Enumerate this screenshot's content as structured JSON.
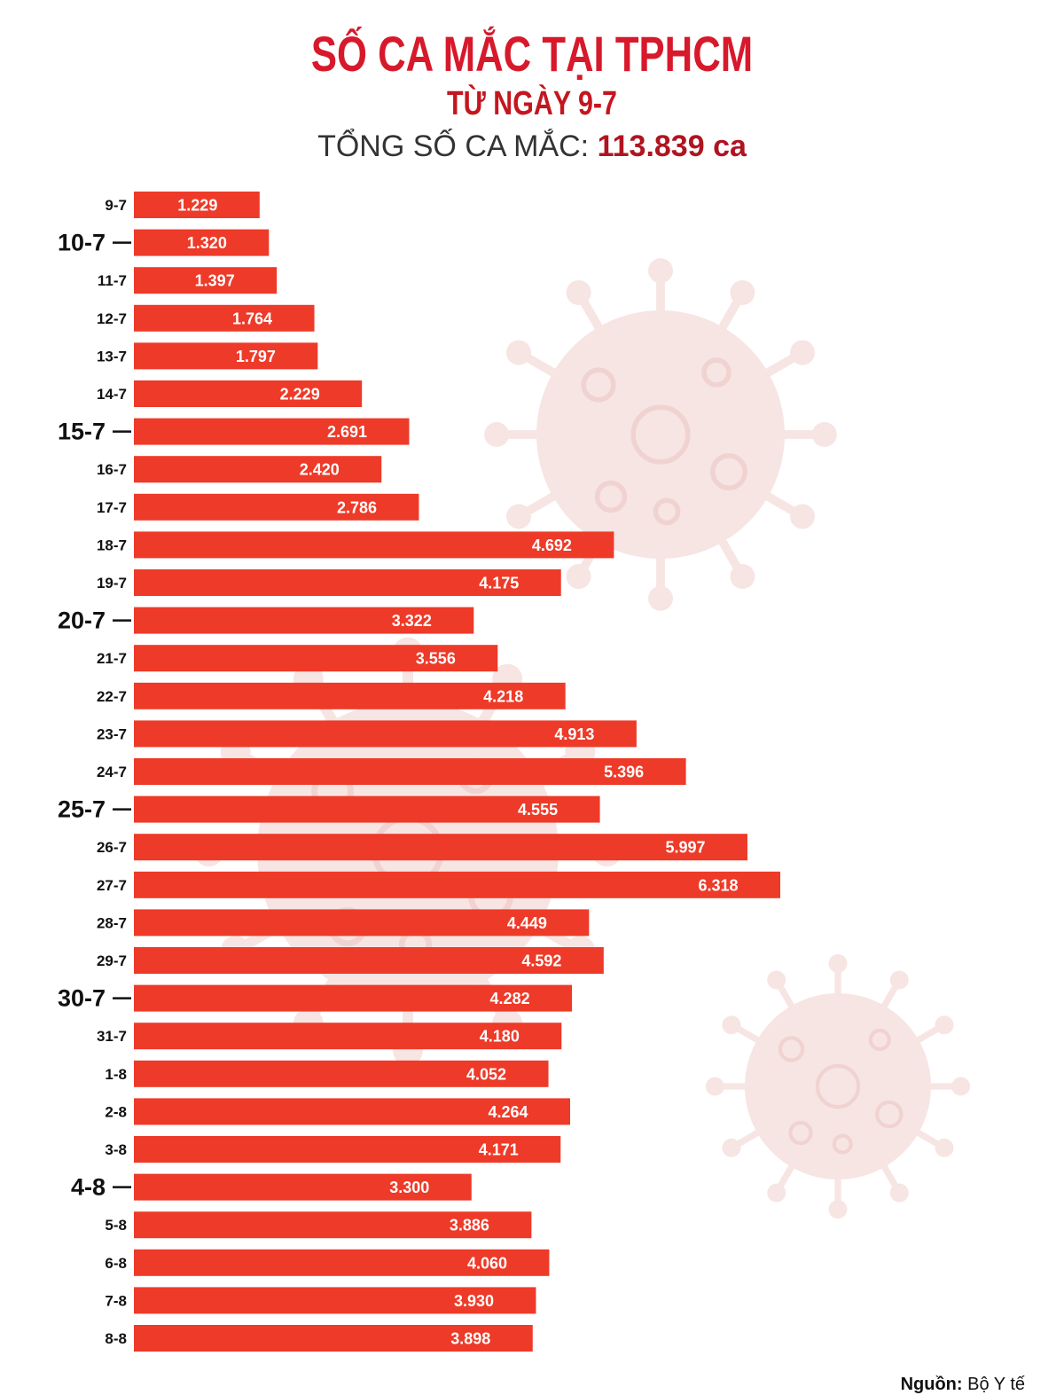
{
  "title": "SỐ CA MẮC TẠI TPHCM",
  "subtitle": "TỪ NGÀY 9-7",
  "total": {
    "label": "TỔNG SỐ CA MẮC:",
    "value": "113.839",
    "unit": "ca"
  },
  "source": {
    "label": "Nguồn:",
    "value": "Bộ Y tế"
  },
  "colors": {
    "bar": "#ee3a28",
    "title": "#d7192b",
    "virus": "#f6e3e1"
  },
  "chart_data": {
    "type": "bar",
    "orientation": "horizontal",
    "categories": [
      "9-7",
      "10-7",
      "11-7",
      "12-7",
      "13-7",
      "14-7",
      "15-7",
      "16-7",
      "17-7",
      "18-7",
      "19-7",
      "20-7",
      "21-7",
      "22-7",
      "23-7",
      "24-7",
      "25-7",
      "26-7",
      "27-7",
      "28-7",
      "29-7",
      "30-7",
      "31-7",
      "1-8",
      "2-8",
      "3-8",
      "4-8",
      "5-8",
      "6-8",
      "7-8",
      "8-8"
    ],
    "values": [
      1229,
      1320,
      1397,
      1764,
      1797,
      2229,
      2691,
      2420,
      2786,
      4692,
      4175,
      3322,
      3556,
      4218,
      4913,
      5396,
      4555,
      5997,
      6318,
      4449,
      4592,
      4282,
      4180,
      4052,
      4264,
      4171,
      3300,
      3886,
      4060,
      3930,
      3898
    ],
    "value_labels": [
      "1.229",
      "1.320",
      "1.397",
      "1.764",
      "1.797",
      "2.229",
      "2.691",
      "2.420",
      "2.786",
      "4.692",
      "4.175",
      "3.322",
      "3.556",
      "4.218",
      "4.913",
      "5.396",
      "4.555",
      "5.997",
      "6.318",
      "4.449",
      "4.592",
      "4.282",
      "4.180",
      "4.052",
      "4.264",
      "4.171",
      "3.300",
      "3.886",
      "4.060",
      "3.930",
      "3.898"
    ],
    "emphasized_categories": [
      "10-7",
      "15-7",
      "20-7",
      "25-7",
      "30-7",
      "4-8"
    ],
    "xlim": [
      0,
      6318
    ],
    "grid": false,
    "legend": "none"
  }
}
